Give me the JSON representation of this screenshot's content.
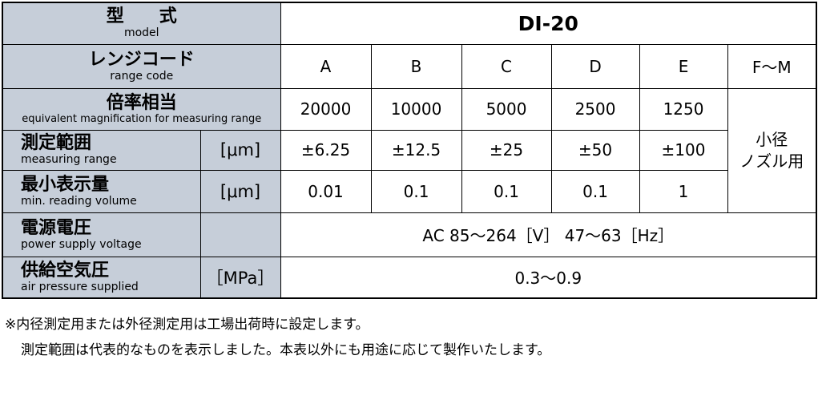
{
  "table": {
    "rows": [
      {
        "label": {
          "ja": "型　　式",
          "en": "model"
        },
        "cells": [
          "DI-20"
        ]
      },
      {
        "label": {
          "ja": "レンジコード",
          "en": "range code"
        },
        "cells": [
          "A",
          "B",
          "C",
          "D",
          "E",
          "F〜M"
        ]
      },
      {
        "label": {
          "ja": "倍率相当",
          "en": "equivalent magnification for measuring range"
        },
        "cells": [
          "20000",
          "10000",
          "5000",
          "2500",
          "1250",
          "小径\nノズル用"
        ]
      },
      {
        "label": {
          "ja": "測定範囲",
          "en": "measuring range"
        },
        "unit": "[μm]",
        "cells": [
          "±6.25",
          "±12.5",
          "±25",
          "±50",
          "±100"
        ]
      },
      {
        "label": {
          "ja": "最小表示量",
          "en": "min. reading volume"
        },
        "unit": "[μm]",
        "cells": [
          "0.01",
          "0.1",
          "0.1",
          "0.1",
          "1"
        ]
      },
      {
        "label": {
          "ja": "電源電圧",
          "en": "power supply voltage"
        },
        "cells": [
          "AC 85〜264［V］ 47〜63［Hz］"
        ]
      },
      {
        "label": {
          "ja": "供給空気圧",
          "en": "air pressure supplied"
        },
        "unit": "［MPa］",
        "cells": [
          "0.3〜0.9"
        ]
      }
    ]
  },
  "notes": [
    "※内径測定用または外径測定用は工場出荷時に設定します。",
    "測定範囲は代表的なものを表示しました。本表以外にも用途に応じて製作いたします。"
  ]
}
